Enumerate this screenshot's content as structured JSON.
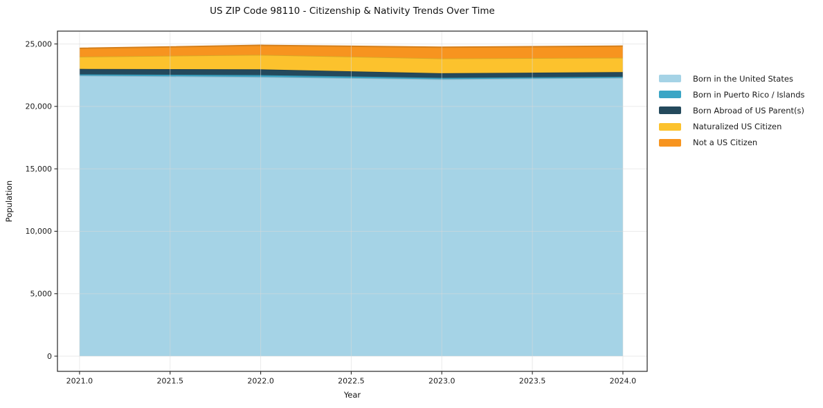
{
  "title": "US ZIP Code 98110 - Citizenship & Nativity Trends Over Time",
  "chart_data": {
    "type": "area",
    "stacked": true,
    "title": "US ZIP Code 98110 - Citizenship & Nativity Trends Over Time",
    "xlabel": "Year",
    "ylabel": "Population",
    "x": [
      2021,
      2022,
      2023,
      2024
    ],
    "series": [
      {
        "name": "Born in the United States",
        "color": "#a5d3e6",
        "values": [
          22470,
          22360,
          22180,
          22290
        ]
      },
      {
        "name": "Born in Puerto Rico / Islands",
        "color": "#3aa5c5",
        "values": [
          100,
          150,
          110,
          90
        ]
      },
      {
        "name": "Born Abroad of US Parent(s)",
        "color": "#24495c",
        "values": [
          430,
          460,
          365,
          370
        ]
      },
      {
        "name": "Naturalized US Citizen",
        "color": "#fcc22d",
        "values": [
          980,
          1160,
          1185,
          1145
        ]
      },
      {
        "name": "Not a US Citizen",
        "color": "#f7941f",
        "values": [
          670,
          760,
          900,
          935
        ]
      }
    ],
    "totals": [
      24650,
      24890,
      24740,
      24830
    ],
    "x_ticks": [
      "2021.0",
      "2021.5",
      "2022.0",
      "2022.5",
      "2023.0",
      "2023.5",
      "2024.0"
    ],
    "x_tick_values": [
      2021.0,
      2021.5,
      2022.0,
      2022.5,
      2023.0,
      2023.5,
      2024.0
    ],
    "y_ticks": [
      "0",
      "5,000",
      "10,000",
      "15,000",
      "20,000",
      "25,000"
    ],
    "y_tick_values": [
      0,
      5000,
      10000,
      15000,
      20000,
      25000
    ],
    "xlim": [
      2020.878,
      2024.134
    ],
    "ylim": [
      -1217,
      26028
    ],
    "grid": true,
    "legend_position": "right-outside",
    "colors": {
      "frame": "#262626",
      "grid": "#d9d9d9",
      "tick_label": "#1a1a1a"
    }
  }
}
